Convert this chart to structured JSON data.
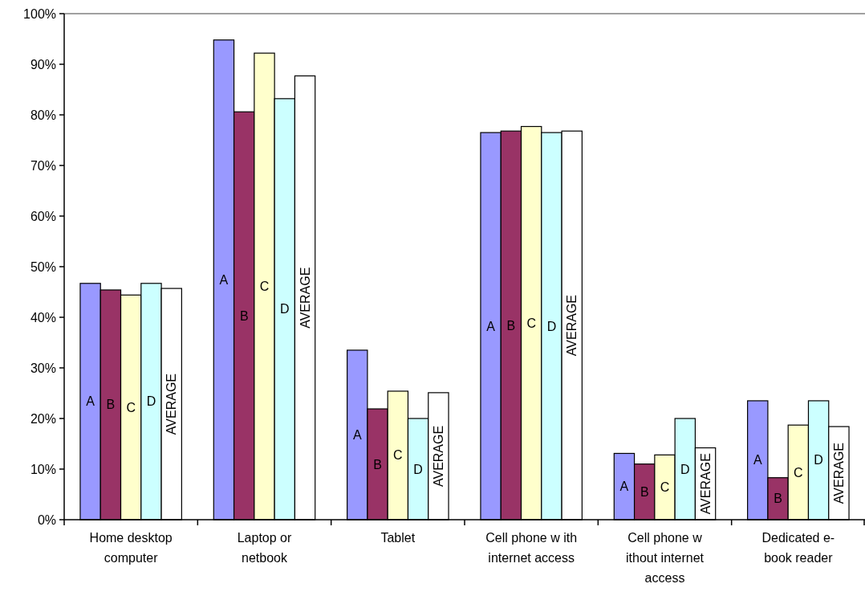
{
  "chart_data": {
    "type": "bar",
    "categories": [
      "Home desktop computer",
      "Laptop or netbook",
      "Tablet",
      "Cell phone w ith internet access",
      "Cell phone w ithout internet access",
      "Dedicated e-book reader"
    ],
    "series": [
      {
        "name": "A",
        "color": "#9999ff",
        "values": [
          46.7,
          94.8,
          33.5,
          76.5,
          13.1,
          23.5
        ]
      },
      {
        "name": "B",
        "color": "#993366",
        "values": [
          45.4,
          80.6,
          21.9,
          76.8,
          11.0,
          8.3
        ]
      },
      {
        "name": "C",
        "color": "#ffffcc",
        "values": [
          44.4,
          92.2,
          25.4,
          77.7,
          12.8,
          18.7
        ]
      },
      {
        "name": "D",
        "color": "#ccffff",
        "values": [
          46.7,
          83.2,
          20.0,
          76.5,
          20.0,
          23.5
        ]
      },
      {
        "name": "AVERAGE",
        "color": "#ffffff",
        "values": [
          45.7,
          87.7,
          25.1,
          76.8,
          14.2,
          18.4
        ]
      }
    ],
    "ylim": [
      0,
      100
    ],
    "yticks": [
      {
        "value": 0,
        "label": "0%"
      },
      {
        "value": 10,
        "label": "10%"
      },
      {
        "value": 20,
        "label": "20%"
      },
      {
        "value": 30,
        "label": "30%"
      },
      {
        "value": 40,
        "label": "40%"
      },
      {
        "value": 50,
        "label": "50%"
      },
      {
        "value": 60,
        "label": "60%"
      },
      {
        "value": 70,
        "label": "70%"
      },
      {
        "value": 80,
        "label": "80%"
      },
      {
        "value": 90,
        "label": "90%"
      },
      {
        "value": 100,
        "label": "100%"
      }
    ],
    "grid": false
  }
}
